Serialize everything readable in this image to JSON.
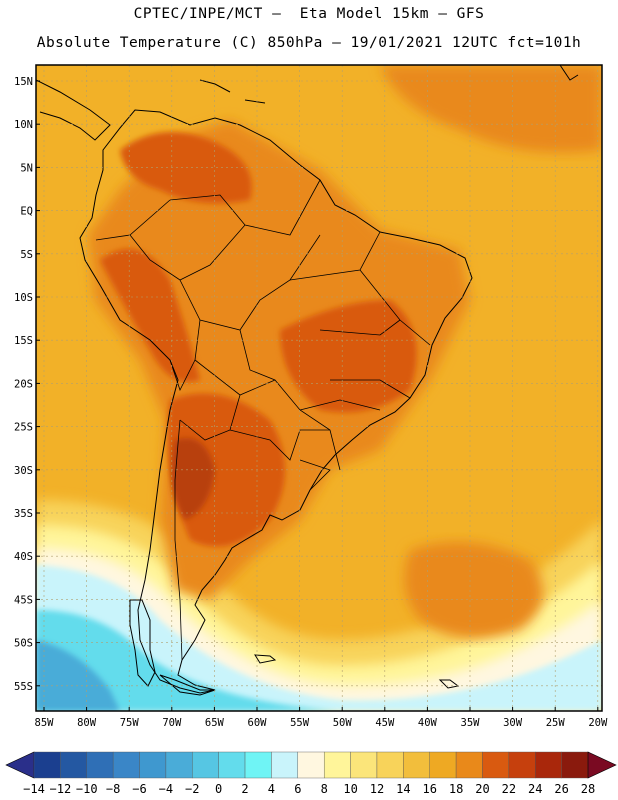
{
  "header": {
    "line1": "CPTEC/INPE/MCT –  Eta Model 15km – GFS",
    "line2": "Absolute Temperature (C) 850hPa – 19/01/2021 12UTC fct=101h"
  },
  "map": {
    "lat_labels": [
      "15N",
      "10N",
      "5N",
      "EQ",
      "5S",
      "10S",
      "15S",
      "20S",
      "25S",
      "30S",
      "35S",
      "40S",
      "45S",
      "50S",
      "55S"
    ],
    "lon_labels": [
      "85W",
      "80W",
      "75W",
      "70W",
      "65W",
      "60W",
      "55W",
      "50W",
      "45W",
      "40W",
      "35W",
      "30W",
      "25W",
      "20W"
    ]
  },
  "colorbar": {
    "labels": [
      "-14",
      "-12",
      "-10",
      "-8",
      "-6",
      "-4",
      "-2",
      "0",
      "2",
      "4",
      "6",
      "8",
      "10",
      "12",
      "14",
      "16",
      "18",
      "20",
      "22",
      "24",
      "26",
      "28"
    ],
    "colors": [
      "#1b3f8f",
      "#2458a2",
      "#2f6fb6",
      "#3a86c7",
      "#3f98cf",
      "#4aacd8",
      "#56c6e3",
      "#63dcec",
      "#6ff4f5",
      "#c9f4fb",
      "#fff7e0",
      "#fff59a",
      "#fbe57a",
      "#f8d35a",
      "#f2be3c",
      "#eea923",
      "#e9891a",
      "#d95a10",
      "#c6400d",
      "#a9270b",
      "#8a1a0d"
    ],
    "under_color": "#2a2f8a",
    "over_color": "#7a0a22"
  },
  "palette": {
    "ocean_base": "#f2b128",
    "land_warm": "#e9891a",
    "land_hot": "#d95a10",
    "land_very_hot": "#b8400c",
    "cool_yellow": "#f8d35a",
    "pale": "#fff59a",
    "cream": "#fff7e0",
    "ice": "#c9f4fb",
    "cyan": "#63dcec",
    "cyan_light": "#6ff4f5",
    "blue": "#4aacd8"
  }
}
